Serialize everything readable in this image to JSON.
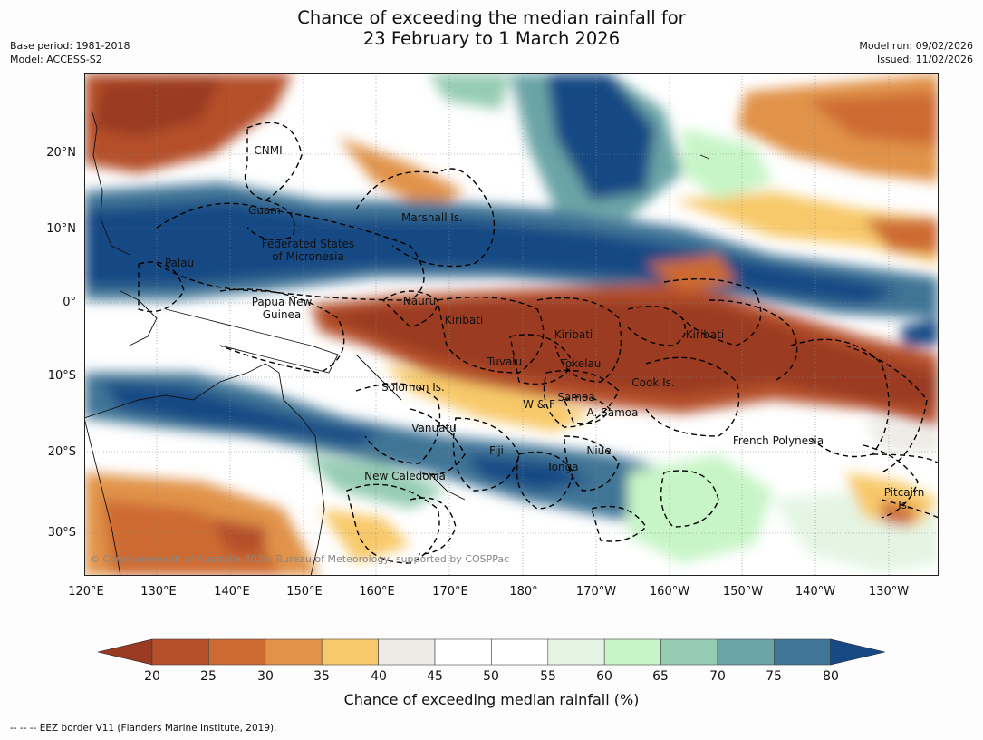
{
  "title": {
    "line1": "Chance of exceeding the median rainfall for",
    "line2": "23 February to 1 March 2026"
  },
  "meta": {
    "base_period": "Base period: 1981-2018",
    "model": "Model: ACCESS-S2",
    "model_run": "Model run: 09/02/2026",
    "issued": "Issued: 11/02/2026"
  },
  "map": {
    "lat_labels": [
      "20°N",
      "10°N",
      "0°",
      "10°S",
      "20°S",
      "30°S"
    ],
    "lon_labels": [
      "120°E",
      "130°E",
      "140°E",
      "150°E",
      "160°E",
      "170°E",
      "180°",
      "170°W",
      "160°W",
      "150°W",
      "140°W",
      "130°W"
    ],
    "places": {
      "cnmi": "CNMI",
      "guam": "Guam",
      "marshall": "Marshall Is.",
      "fsm1": "Federated States",
      "fsm2": "of Micronesia",
      "palau": "Palau",
      "nauru": "Nauru",
      "png1": "Papua New",
      "png2": "Guinea",
      "kiribati_w": "Kiribati",
      "kiribati_c": "Kiribati",
      "kiribati_e": "Kiribati",
      "tuvalu": "Tuvalu",
      "tokelau": "Tokelau",
      "cook": "Cook Is.",
      "solomon": "Solomon Is.",
      "samoa": "Samoa",
      "wf": "W & F",
      "asamoa": "A. Samoa",
      "vanuatu": "Vanuatu",
      "fiji": "Fiji",
      "niue": "Niue",
      "tonga": "Tonga",
      "french_polynesia": "French Polynesia",
      "new_caledonia": "New Caledonia",
      "pitcairn1": "Pitcairn",
      "pitcairn2": "Is."
    },
    "copyright": "© Commonwealth of Australia 2026, Bureau of Meteorology, supported by COSPPac"
  },
  "colorbar": {
    "ticks": [
      "20",
      "25",
      "30",
      "35",
      "40",
      "45",
      "50",
      "55",
      "60",
      "65",
      "70",
      "75",
      "80"
    ],
    "colors": [
      "#9a3a22",
      "#b5502a",
      "#cd6a32",
      "#e1934a",
      "#f8c96a",
      "#ecebe6",
      "#ffffff",
      "#ffffff",
      "#e4f5e4",
      "#c8f5c8",
      "#96ccb4",
      "#6aa4a6",
      "#3f7596",
      "#174a84"
    ],
    "label": "Chance of exceeding median rainfall (%)"
  },
  "footnote": "--  --  -- EEZ border V11 (Flanders Marine Institute, 2019)."
}
